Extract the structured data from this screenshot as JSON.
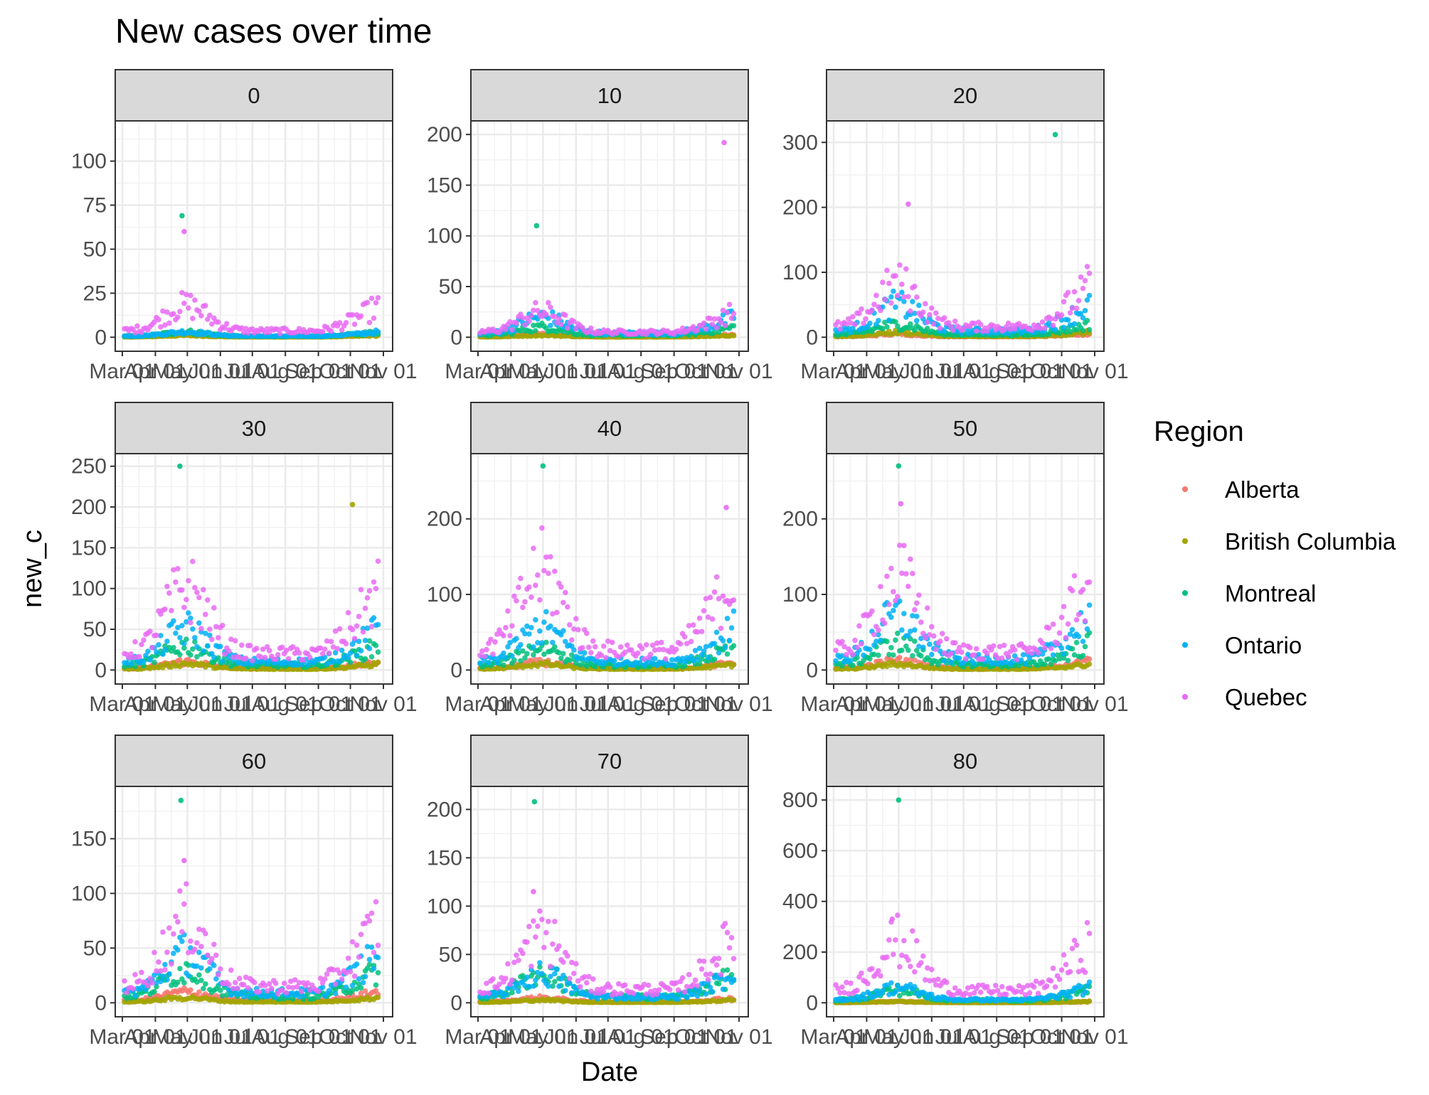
{
  "chart_data": {
    "type": "scatter",
    "title": "New cases over time",
    "xlabel": "Date",
    "ylabel": "new_c",
    "x_ticks": [
      "Mar 01",
      "Apr 01",
      "May 01",
      "Jun 01",
      "Jul 01",
      "Aug 01",
      "Sep 01",
      "Oct 01",
      "Nov 01"
    ],
    "x_range": [
      "2020-03-01",
      "2020-11-01"
    ],
    "grid": true,
    "legend": {
      "title": "Region",
      "position": "right",
      "entries": [
        "Alberta",
        "British Columbia",
        "Montreal",
        "Ontario",
        "Quebec"
      ]
    },
    "series_colors": {
      "Alberta": "#F8766D",
      "British Columbia": "#A3A500",
      "Montreal": "#00BF7D",
      "Ontario": "#00B0F6",
      "Quebec": "#E76BF3"
    },
    "facets": [
      {
        "label": "0",
        "ylim": [
          0,
          100
        ],
        "y_ticks": [
          0,
          25,
          50,
          75,
          100
        ],
        "y_max_view": 118,
        "levels": {
          "Alberta": 2,
          "British Columbia": 1,
          "Montreal": 3,
          "Ontario": 3,
          "Quebec": 18
        },
        "peaks": {
          "Quebec": {
            "x": "2020-04-28",
            "y": 60
          },
          "Montreal": {
            "x": "2020-04-26",
            "y": 69
          }
        }
      },
      {
        "label": "10",
        "ylim": [
          0,
          200
        ],
        "y_ticks": [
          0,
          50,
          100,
          150,
          200
        ],
        "y_max_view": 205,
        "levels": {
          "Alberta": 3,
          "British Columbia": 2,
          "Montreal": 10,
          "Ontario": 20,
          "Quebec": 25
        },
        "peaks": {
          "Quebec": {
            "x": "2020-10-18",
            "y": 192
          },
          "Montreal": {
            "x": "2020-04-25",
            "y": 110
          }
        }
      },
      {
        "label": "20",
        "ylim": [
          0,
          300
        ],
        "y_ticks": [
          0,
          100,
          200,
          300
        ],
        "y_max_view": 320,
        "levels": {
          "Alberta": 5,
          "British Columbia": 8,
          "Montreal": 20,
          "Ontario": 50,
          "Quebec": 80
        },
        "peaks": {
          "Montreal": {
            "x": "2020-09-25",
            "y": 312
          },
          "Quebec": {
            "x": "2020-05-10",
            "y": 205
          }
        }
      },
      {
        "label": "30",
        "ylim": [
          0,
          250
        ],
        "y_ticks": [
          0,
          50,
          100,
          150,
          200,
          250
        ],
        "y_max_view": 255,
        "levels": {
          "Alberta": 10,
          "British Columbia": 8,
          "Montreal": 30,
          "Ontario": 50,
          "Quebec": 100
        },
        "peaks": {
          "Montreal": {
            "x": "2020-04-24",
            "y": 250
          },
          "British Columbia": {
            "x": "2020-10-03",
            "y": 203
          }
        }
      },
      {
        "label": "40",
        "ylim": [
          0,
          250
        ],
        "y_ticks": [
          0,
          100,
          200
        ],
        "y_max_view": 275,
        "levels": {
          "Alberta": 10,
          "British Columbia": 8,
          "Montreal": 30,
          "Ontario": 55,
          "Quebec": 130
        },
        "peaks": {
          "Montreal": {
            "x": "2020-05-01",
            "y": 270
          },
          "Quebec": {
            "x": "2020-10-20",
            "y": 215
          }
        }
      },
      {
        "label": "50",
        "ylim": [
          0,
          250
        ],
        "y_ticks": [
          0,
          100,
          200
        ],
        "y_max_view": 275,
        "levels": {
          "Alberta": 12,
          "British Columbia": 8,
          "Montreal": 35,
          "Ontario": 70,
          "Quebec": 120
        },
        "peaks": {
          "Montreal": {
            "x": "2020-05-01",
            "y": 270
          },
          "Quebec": {
            "x": "2020-05-03",
            "y": 220
          }
        }
      },
      {
        "label": "60",
        "ylim": [
          0,
          190
        ],
        "y_ticks": [
          0,
          50,
          100,
          150
        ],
        "y_max_view": 190,
        "levels": {
          "Alberta": 10,
          "British Columbia": 5,
          "Montreal": 30,
          "Ontario": 45,
          "Quebec": 75
        },
        "peaks": {
          "Montreal": {
            "x": "2020-04-25",
            "y": 185
          },
          "Quebec": {
            "x": "2020-04-28",
            "y": 130
          }
        }
      },
      {
        "label": "70",
        "ylim": [
          0,
          200
        ],
        "y_ticks": [
          0,
          50,
          100,
          150,
          200
        ],
        "y_max_view": 215,
        "levels": {
          "Alberta": 5,
          "British Columbia": 3,
          "Montreal": 30,
          "Ontario": 30,
          "Quebec": 70
        },
        "peaks": {
          "Montreal": {
            "x": "2020-04-23",
            "y": 208
          },
          "Quebec": {
            "x": "2020-04-22",
            "y": 115
          }
        }
      },
      {
        "label": "80",
        "ylim": [
          0,
          800
        ],
        "y_ticks": [
          0,
          200,
          400,
          600,
          800
        ],
        "y_max_view": 820,
        "levels": {
          "Alberta": 5,
          "British Columbia": 5,
          "Montreal": 50,
          "Ontario": 60,
          "Quebec": 240
        },
        "peaks": {
          "Montreal": {
            "x": "2020-05-01",
            "y": 800
          },
          "Quebec": {
            "x": "2020-04-25",
            "y": 330
          }
        }
      }
    ]
  }
}
